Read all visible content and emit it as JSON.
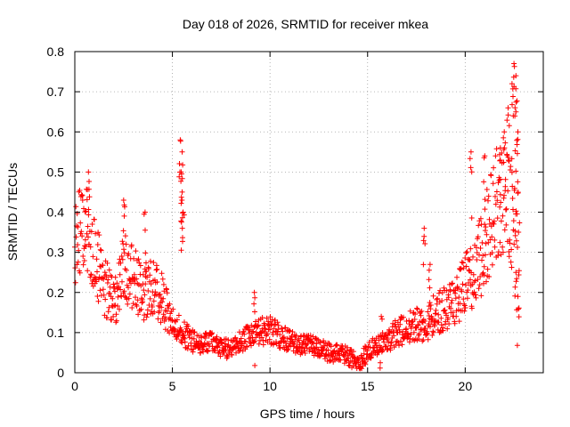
{
  "chart_data": {
    "type": "scatter",
    "title": "Day 018 of 2026, SRMTID for receiver mkea",
    "xlabel": "GPS time / hours",
    "ylabel": "SRMTID / TECUs",
    "xlim": [
      0,
      24
    ],
    "ylim": [
      0,
      0.8
    ],
    "xticks": [
      0,
      5,
      10,
      15,
      20
    ],
    "xtick_labels": [
      "0",
      "5",
      "10",
      "15",
      "20"
    ],
    "yticks": [
      0,
      0.1,
      0.2,
      0.3,
      0.4,
      0.5,
      0.6,
      0.7,
      0.8
    ],
    "ytick_labels": [
      "0",
      "0.1",
      "0.2",
      "0.3",
      "0.4",
      "0.5",
      "0.6",
      "0.7",
      "0.8"
    ],
    "grid": true,
    "marker": "+",
    "series": [
      {
        "name": "SRMTID",
        "color": "#ff0000",
        "trend": {
          "x": [
            0,
            0.5,
            1,
            1.5,
            2,
            2.5,
            3,
            3.5,
            4,
            4.5,
            5,
            5.5,
            6,
            6.5,
            7,
            7.5,
            8,
            8.5,
            9,
            9.5,
            10,
            10.5,
            11,
            11.5,
            12,
            12.5,
            13,
            13.5,
            14,
            14.5,
            15,
            15.5,
            16,
            16.5,
            17,
            17.5,
            18,
            18.5,
            19,
            19.5,
            20,
            20.5,
            21,
            21.5,
            22,
            22.5
          ],
          "y": [
            0.32,
            0.36,
            0.3,
            0.22,
            0.17,
            0.26,
            0.24,
            0.2,
            0.22,
            0.18,
            0.12,
            0.1,
            0.08,
            0.07,
            0.08,
            0.06,
            0.06,
            0.08,
            0.09,
            0.1,
            0.11,
            0.09,
            0.08,
            0.07,
            0.07,
            0.06,
            0.05,
            0.05,
            0.04,
            0.02,
            0.05,
            0.07,
            0.08,
            0.1,
            0.11,
            0.12,
            0.12,
            0.15,
            0.16,
            0.18,
            0.22,
            0.25,
            0.32,
            0.42,
            0.45,
            0.35
          ]
        },
        "spikes": [
          {
            "x": 0.7,
            "y": 0.5
          },
          {
            "x": 2.5,
            "y": 0.43
          },
          {
            "x": 3.6,
            "y": 0.4
          },
          {
            "x": 5.4,
            "y": 0.58
          },
          {
            "x": 5.5,
            "y": 0.55
          },
          {
            "x": 5.45,
            "y": 0.5
          },
          {
            "x": 5.5,
            "y": 0.45
          },
          {
            "x": 5.55,
            "y": 0.4
          },
          {
            "x": 9.2,
            "y": 0.2
          },
          {
            "x": 15.7,
            "y": 0.14
          },
          {
            "x": 17.9,
            "y": 0.36
          },
          {
            "x": 18.2,
            "y": 0.27
          },
          {
            "x": 20.3,
            "y": 0.55
          },
          {
            "x": 21.0,
            "y": 0.54
          },
          {
            "x": 21.8,
            "y": 0.56
          },
          {
            "x": 22.0,
            "y": 0.6
          },
          {
            "x": 22.2,
            "y": 0.66
          },
          {
            "x": 22.4,
            "y": 0.72
          },
          {
            "x": 22.5,
            "y": 0.77
          },
          {
            "x": 22.6,
            "y": 0.74
          },
          {
            "x": 22.6,
            "y": 0.65
          },
          {
            "x": 22.7,
            "y": 0.6
          },
          {
            "x": 22.7,
            "y": 0.19
          },
          {
            "x": 22.6,
            "y": 0.25
          }
        ]
      }
    ]
  }
}
